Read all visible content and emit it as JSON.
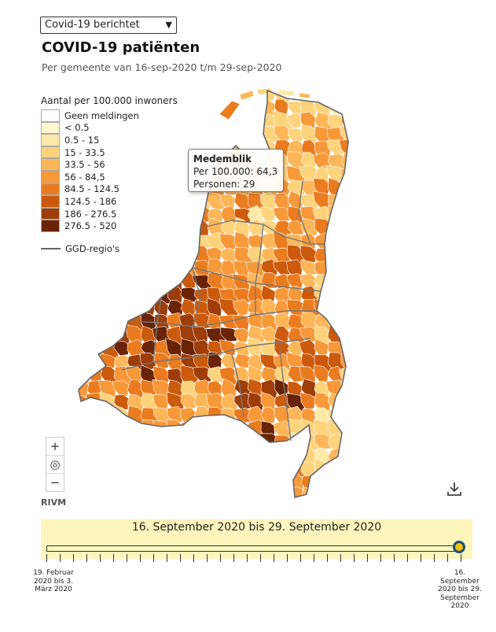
{
  "dropdown": {
    "selected": "Covid-19 berichtet"
  },
  "title": "COVID-19 patiënten",
  "subtitle": "Per gemeente van 16-sep-2020 t/m 29-sep-2020",
  "legend": {
    "title": "Aantal per 100.000 inwoners",
    "classes": [
      {
        "label": "Geen meldingen",
        "color": "#ffffff"
      },
      {
        "label": "< 0.5",
        "color": "#fff7d0"
      },
      {
        "label": "0.5 - 15",
        "color": "#ffe9a6"
      },
      {
        "label": "15 - 33.5",
        "color": "#fdd37c"
      },
      {
        "label": "33.5 - 56",
        "color": "#fdb658"
      },
      {
        "label": "56 - 84,5",
        "color": "#f79839"
      },
      {
        "label": "84.5 - 124.5",
        "color": "#ea7c1f"
      },
      {
        "label": "124.5 - 186",
        "color": "#cc5a0c"
      },
      {
        "label": "186 - 276.5",
        "color": "#9e3d08"
      },
      {
        "label": "276.5 - 520",
        "color": "#6a2306"
      }
    ],
    "boundary_label": "GGD-regio's"
  },
  "tooltip": {
    "name": "Medemblik",
    "per100k": "Per 100.000: 64,3",
    "persons": "Personen: 29"
  },
  "zoom": {
    "in": "+",
    "reset": "◎",
    "out": "−"
  },
  "source": "RIVM",
  "time": {
    "range_label": "16. September 2020 bis 29. September 2020",
    "start_label": "19. Februar 2020 bis 3. März 2020",
    "end_label": "16. September 2020 bis 29. September 2020",
    "position": 1.0
  },
  "icons": {
    "download": "download-icon",
    "zoom_reset": "target-icon"
  }
}
